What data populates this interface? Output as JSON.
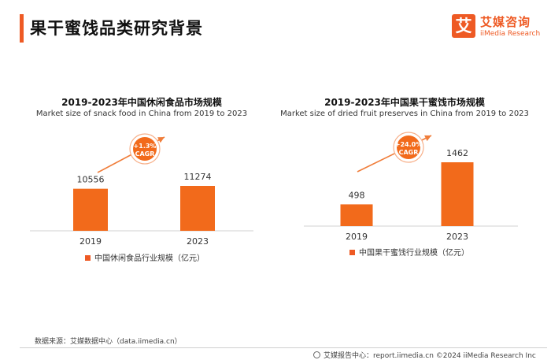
{
  "page": {
    "title": "果干蜜饯品类研究背景",
    "logo": {
      "mark": "艾",
      "name_cn": "艾媒咨询",
      "name_en": "iiMedia Research"
    },
    "source": "数据来源：艾媒数据中心（data.iimedia.cn）",
    "footer": "艾媒报告中心：report.iimedia.cn    ©2024  iiMedia Research Inc"
  },
  "colors": {
    "accent": "#ee5a24",
    "bar": "#f26a1b",
    "arrow": "#f07d3a"
  },
  "chart_data": [
    {
      "type": "bar",
      "title": "2019-2023年中国休闲食品市场规模",
      "subtitle": "Market size of snack food in China from 2019 to 2023",
      "categories": [
        "2019",
        "2023"
      ],
      "series": [
        {
          "name": "中国休闲食品行业规模（亿元）",
          "values": [
            10556,
            11274
          ]
        }
      ],
      "cagr": {
        "value": "+1.3%",
        "label": "CAGR"
      },
      "grid": false,
      "legend": "bottom"
    },
    {
      "type": "bar",
      "title": "2019-2023年中国果干蜜饯市场规模",
      "subtitle": "Market size of dried fruit preserves in China from 2019 to 2023",
      "categories": [
        "2019",
        "2023"
      ],
      "series": [
        {
          "name": "中国果干蜜饯行业规模（亿元）",
          "values": [
            498,
            1462
          ]
        }
      ],
      "cagr": {
        "value": "+24.0%",
        "label": "CAGR"
      },
      "grid": false,
      "legend": "bottom"
    }
  ]
}
